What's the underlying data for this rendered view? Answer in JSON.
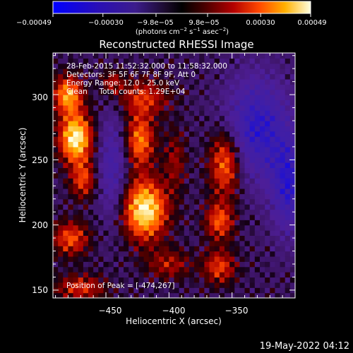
{
  "chart_data": {
    "type": "heatmap",
    "title": "Reconstructed RHESSI Image",
    "xlabel": "Heliocentric X (arcsec)",
    "ylabel": "Heliocentric Y (arcsec)",
    "xlim": [
      -492,
      -300
    ],
    "ylim": [
      144,
      332
    ],
    "x_ticks": [
      -450,
      -400,
      -350
    ],
    "x_tick_labels": [
      "−450",
      "−400",
      "−350"
    ],
    "y_ticks": [
      150,
      200,
      250,
      300
    ],
    "y_tick_labels": [
      "150",
      "200",
      "250",
      "300"
    ],
    "colorbar": {
      "min": -0.00049,
      "max": 0.00049,
      "ticks": [
        -0.00049,
        -0.0003,
        -9.8e-05,
        9.8e-05,
        0.0003,
        0.00049
      ],
      "tick_labels": [
        "−0.00049",
        "−0.00030",
        "−9.8e−05",
        "9.8e−05",
        "0.00030",
        "0.00049"
      ],
      "unit_main": "(photons cm",
      "unit_exp1": "−2",
      "unit_mid": " s",
      "unit_exp2": "−1",
      "unit_end": " asec",
      "unit_exp3": "−2",
      "unit_close": ")"
    },
    "annotations": [
      "28-Feb-2015 11:52:32.000 to 11:58:32.000",
      "Detectors: 3F 5F 6F 7F 8F 9F, Att 0",
      "Energy Range: 12.0 - 25.0 keV",
      "Clean     Total counts: 1.29E+04"
    ],
    "peak_text": "Position of Peak = [-474,267]",
    "peak_position": [
      -474,
      267
    ],
    "sources": [
      {
        "x": -474,
        "y": 267,
        "amp": 1.0,
        "sx": 9,
        "sy": 13
      },
      {
        "x": -480,
        "y": 300,
        "amp": 0.75,
        "sx": 8,
        "sy": 10
      },
      {
        "x": -468,
        "y": 235,
        "amp": 0.5,
        "sx": 7,
        "sy": 10
      },
      {
        "x": -478,
        "y": 190,
        "amp": 0.55,
        "sx": 10,
        "sy": 9
      },
      {
        "x": -470,
        "y": 152,
        "amp": 0.45,
        "sx": 14,
        "sy": 7
      },
      {
        "x": -419,
        "y": 212,
        "amp": 0.98,
        "sx": 12,
        "sy": 16
      },
      {
        "x": -423,
        "y": 265,
        "amp": 0.65,
        "sx": 8,
        "sy": 14
      },
      {
        "x": -420,
        "y": 298,
        "amp": 0.45,
        "sx": 14,
        "sy": 10
      },
      {
        "x": -400,
        "y": 170,
        "amp": 0.35,
        "sx": 12,
        "sy": 8
      },
      {
        "x": -355,
        "y": 248,
        "amp": 0.7,
        "sx": 9,
        "sy": 18
      },
      {
        "x": -360,
        "y": 203,
        "amp": 0.55,
        "sx": 8,
        "sy": 10
      },
      {
        "x": -360,
        "y": 168,
        "amp": 0.5,
        "sx": 9,
        "sy": 9
      },
      {
        "x": -445,
        "y": 310,
        "amp": 0.35,
        "sx": 6,
        "sy": 6
      },
      {
        "x": -395,
        "y": 250,
        "amp": 0.3,
        "sx": 6,
        "sy": 16
      }
    ],
    "negative_regions": [
      {
        "x": -330,
        "y": 275,
        "amp": 0.7,
        "sx": 18,
        "sy": 28
      },
      {
        "x": -305,
        "y": 230,
        "amp": 0.65,
        "sx": 10,
        "sy": 26
      },
      {
        "x": -445,
        "y": 245,
        "amp": 0.45,
        "sx": 8,
        "sy": 28
      }
    ],
    "grid": false
  },
  "footer": {
    "date": "19-May-2022 04:12"
  }
}
